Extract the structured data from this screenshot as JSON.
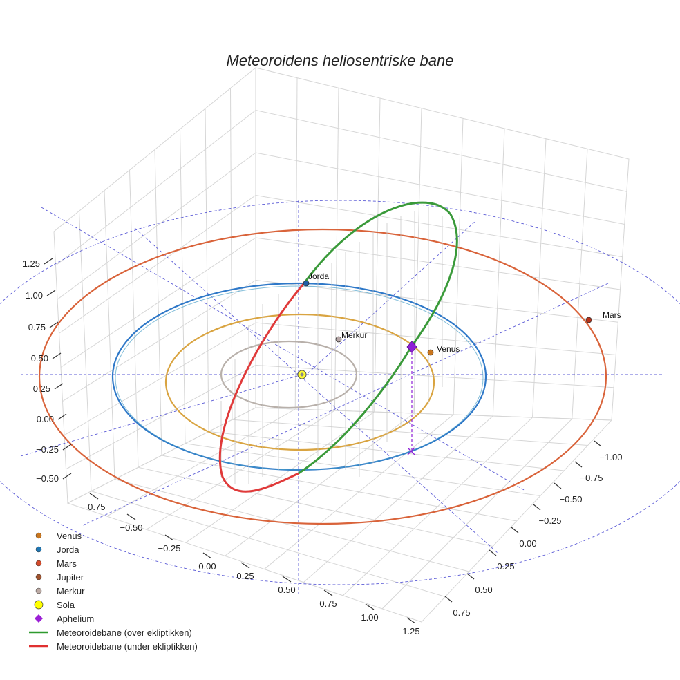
{
  "chart_data": {
    "type": "scatter3d",
    "title": "Meteoroidens heliosentriske bane",
    "axes": {
      "x_ticks": [
        "−0.75",
        "−0.50",
        "−0.25",
        "0.00",
        "0.25",
        "0.50",
        "0.75",
        "1.00",
        "1.25"
      ],
      "y_ticks": [
        "−1.00",
        "−0.75",
        "−0.50",
        "−0.25",
        "0.00",
        "0.25",
        "0.50",
        "0.75"
      ],
      "z_ticks": [
        "−0.50",
        "−0.25",
        "0.00",
        "0.25",
        "0.50",
        "0.75",
        "1.00",
        "1.25"
      ],
      "grid": true
    },
    "orbits": [
      {
        "name": "Merkur",
        "color": "#b8b0aa",
        "radius_au": 0.39
      },
      {
        "name": "Venus",
        "color": "#d9a441",
        "radius_au": 0.72
      },
      {
        "name": "Jorda",
        "color": "#2e78c8",
        "radius_au": 1.0
      },
      {
        "name": "Mars",
        "color": "#d9633a",
        "radius_au": 1.52
      }
    ],
    "planet_labels": [
      {
        "name": "Jorda",
        "label": "Jorda",
        "color": "#1f5fa8"
      },
      {
        "name": "Merkur",
        "label": "Merkur",
        "color": "#b8a8a8"
      },
      {
        "name": "Venus",
        "label": "Venus",
        "color": "#c9761e"
      },
      {
        "name": "Mars",
        "label": "Mars",
        "color": "#b8321a"
      }
    ],
    "meteoroid": {
      "above_ecliptic_color": "#3a9a3a",
      "below_ecliptic_color": "#e03a3a",
      "aphelium_color": "#8e1fd6"
    },
    "legend": {
      "position": "bottom-left",
      "entries": [
        {
          "label": "Venus",
          "marker": "dot",
          "color": "#c9761e"
        },
        {
          "label": "Jorda",
          "marker": "dot",
          "color": "#1f77b4"
        },
        {
          "label": "Mars",
          "marker": "dot",
          "color": "#d44a2a"
        },
        {
          "label": "Jupiter",
          "marker": "dot",
          "color": "#a0522d"
        },
        {
          "label": "Merkur",
          "marker": "dot",
          "color": "#bcaaa4"
        },
        {
          "label": "Sola",
          "marker": "sun",
          "color": "#ffff00"
        },
        {
          "label": "Aphelium",
          "marker": "diamond",
          "color": "#9b1fd6"
        },
        {
          "label": "Meteoroidebane (over ekliptikken)",
          "marker": "line",
          "color": "#2e9a2e"
        },
        {
          "label": "Meteoroidebane (under ekliptikken)",
          "marker": "line",
          "color": "#e03030"
        }
      ]
    }
  }
}
